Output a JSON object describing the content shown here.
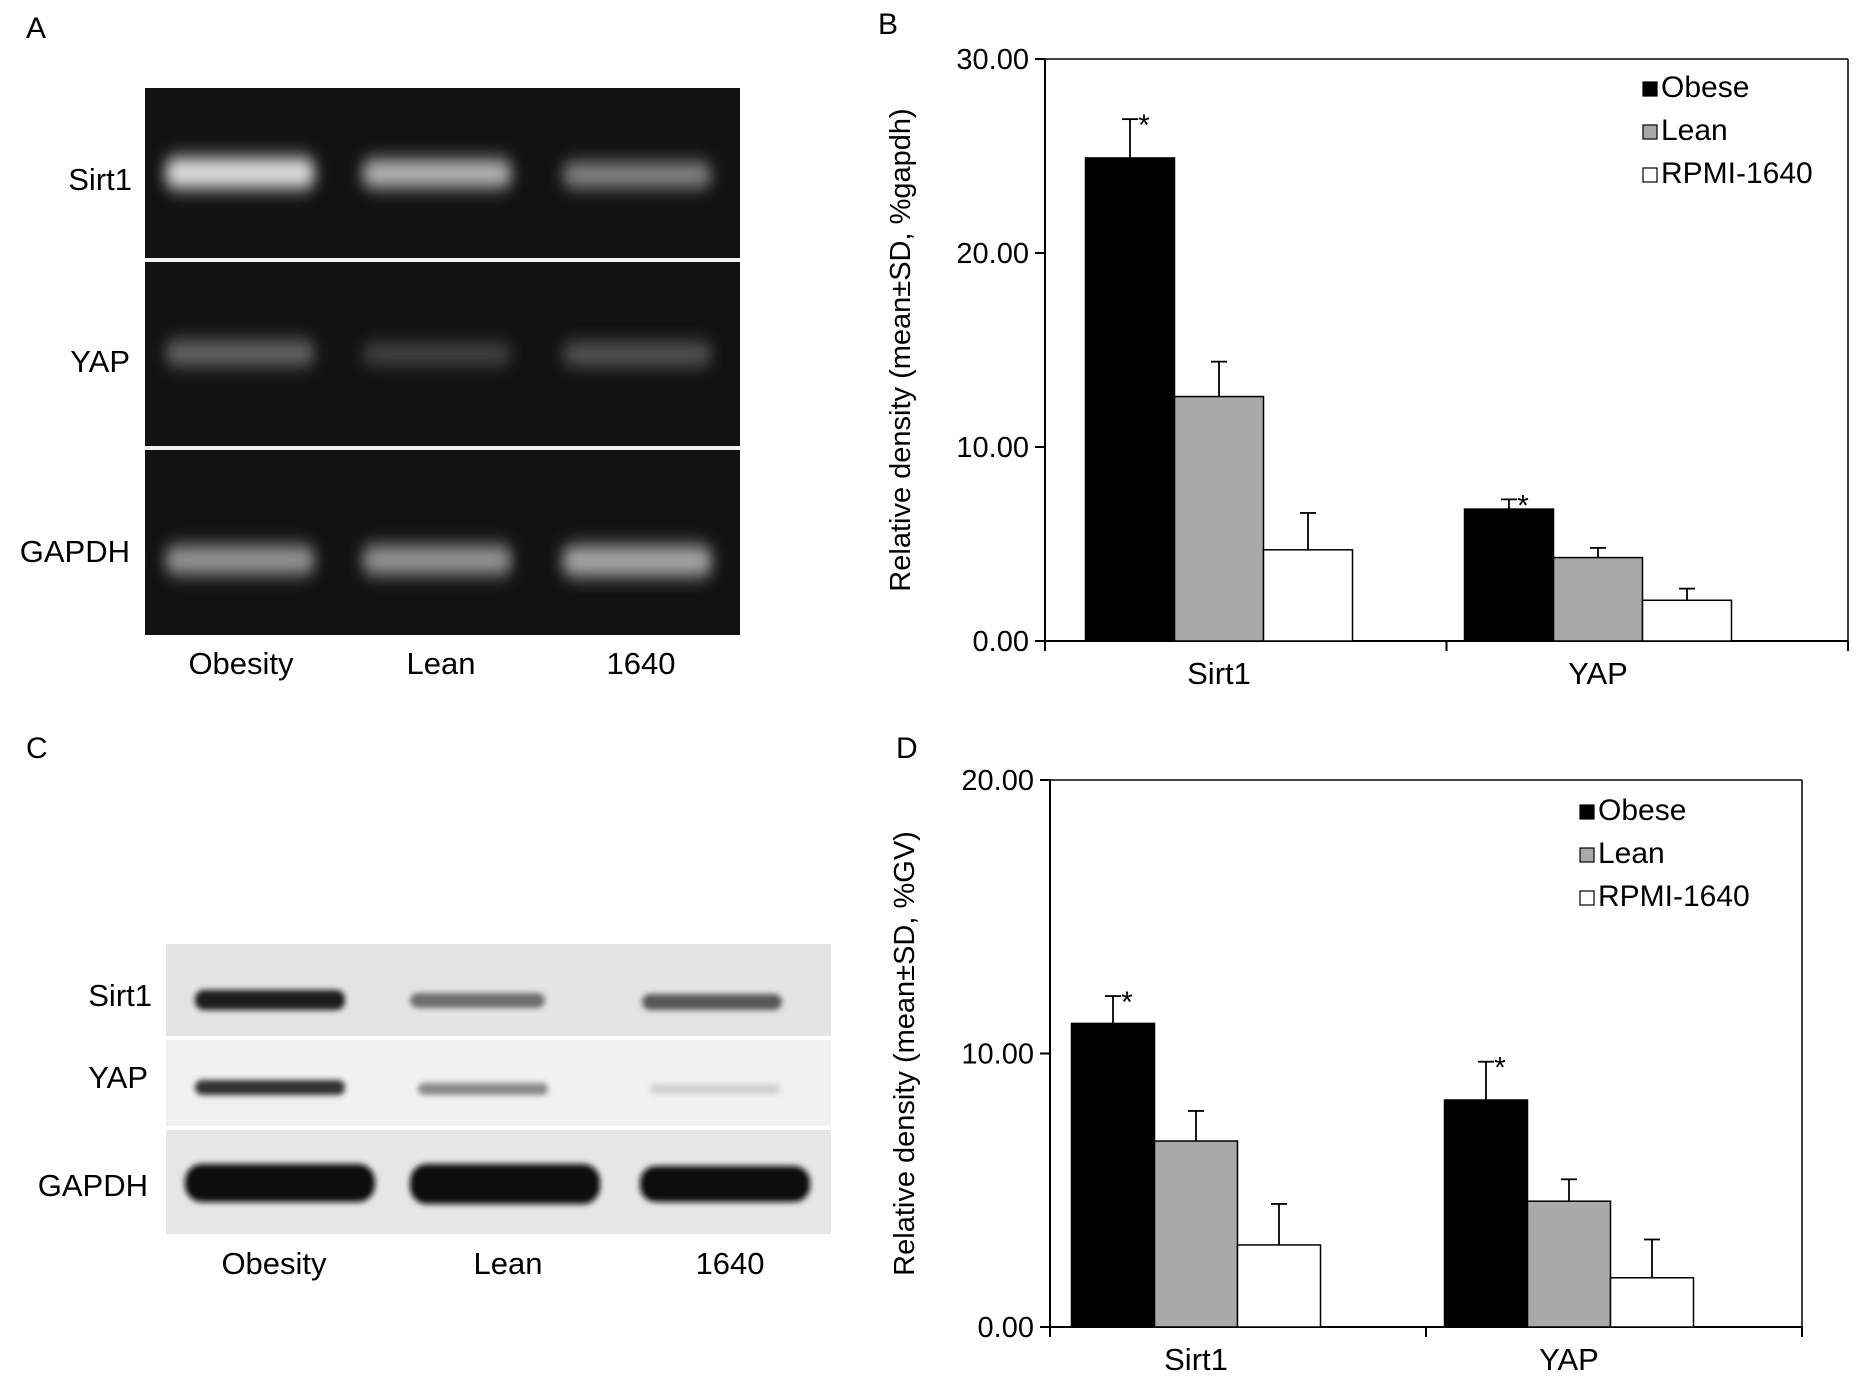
{
  "panel_letters": [
    "A",
    "B",
    "C",
    "D"
  ],
  "gel_panel": {
    "row_labels": [
      "Sirt1",
      "YAP",
      "GAPDH"
    ],
    "lane_labels": [
      "Obesity",
      "Lean",
      "1640"
    ]
  },
  "blot_panel": {
    "row_labels": [
      "Sirt1",
      "YAP",
      "GAPDH"
    ],
    "lane_labels": [
      "Obesity",
      "Lean",
      "1640"
    ]
  },
  "colors": {
    "obese": "#000000",
    "lean": "#a9a9a9",
    "rpmi": "#ffffff"
  },
  "chart_data": [
    {
      "type": "bar",
      "panel": "B",
      "categories": [
        "Sirt1",
        "YAP"
      ],
      "ylabel": "Relative density (mean±SD, %gapdh)",
      "ylim": [
        0,
        30
      ],
      "yticks": [
        "0.00",
        "10.00",
        "20.00",
        "30.00"
      ],
      "ytick_values": [
        0,
        10,
        20,
        30
      ],
      "legend_position": "top-right",
      "series": [
        {
          "name": "Obese",
          "values": [
            24.9,
            6.8
          ],
          "errors": [
            2.0,
            0.5
          ],
          "markers": [
            "*",
            "*"
          ]
        },
        {
          "name": "Lean",
          "values": [
            12.6,
            4.3
          ],
          "errors": [
            1.8,
            0.5
          ],
          "markers": [
            "",
            ""
          ]
        },
        {
          "name": "RPMI-1640",
          "values": [
            4.7,
            2.1
          ],
          "errors": [
            1.9,
            0.6
          ],
          "markers": [
            "",
            ""
          ]
        }
      ]
    },
    {
      "type": "bar",
      "panel": "D",
      "categories": [
        "Sirt1",
        "YAP"
      ],
      "ylabel": "Relative density (mean±SD, %GV)",
      "ylim": [
        0,
        20
      ],
      "yticks": [
        "0.00",
        "10.00",
        "20.00"
      ],
      "ytick_values": [
        0,
        10,
        20
      ],
      "legend_position": "top-right",
      "series": [
        {
          "name": "Obese",
          "values": [
            11.1,
            8.3
          ],
          "errors": [
            1.0,
            1.4
          ],
          "markers": [
            "*",
            "*"
          ]
        },
        {
          "name": "Lean",
          "values": [
            6.8,
            4.6
          ],
          "errors": [
            1.1,
            0.8
          ],
          "markers": [
            "",
            ""
          ]
        },
        {
          "name": "RPMI-1640",
          "values": [
            3.0,
            1.8
          ],
          "errors": [
            1.5,
            1.4
          ],
          "markers": [
            "",
            ""
          ]
        }
      ]
    }
  ]
}
